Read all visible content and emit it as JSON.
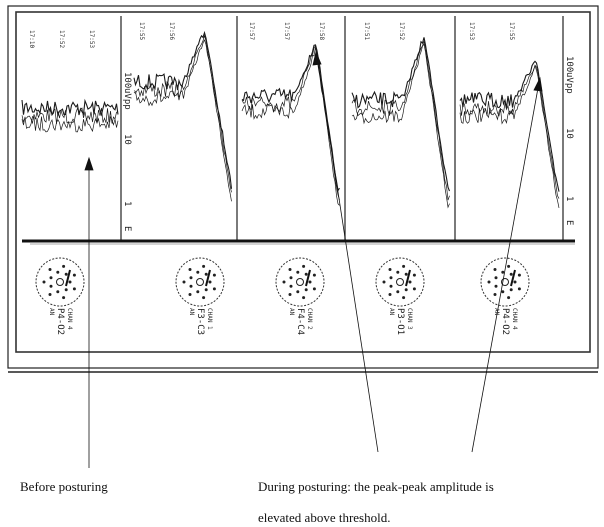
{
  "captions": {
    "before": "Before posturing",
    "during_line1": "During posturing: the peak-peak amplitude is",
    "during_line2": "elevated above threshold."
  },
  "scale_left": {
    "top": "100",
    "unit": "uVpp",
    "mid": "10",
    "low": "1",
    "base": "E"
  },
  "scale_right": {
    "top": "100",
    "unit": "uVpp",
    "mid": "10",
    "low": "1",
    "base": "E"
  },
  "electrodes": [
    {
      "chan": "CHAN 4",
      "label": "P4-O2",
      "an": "AN"
    },
    {
      "chan": "CHAN 1",
      "label": "F3-C3",
      "an": "AN"
    },
    {
      "chan": "CHAN 2",
      "label": "F4-C4",
      "an": "AN"
    },
    {
      "chan": "CHAN 3",
      "label": "P3-O1",
      "an": "AN"
    },
    {
      "chan": "CHAN 4",
      "label": "P4-O2",
      "an": "AN"
    }
  ],
  "colors": {
    "ink": "#1a1a1a",
    "paper": "#ffffff"
  }
}
